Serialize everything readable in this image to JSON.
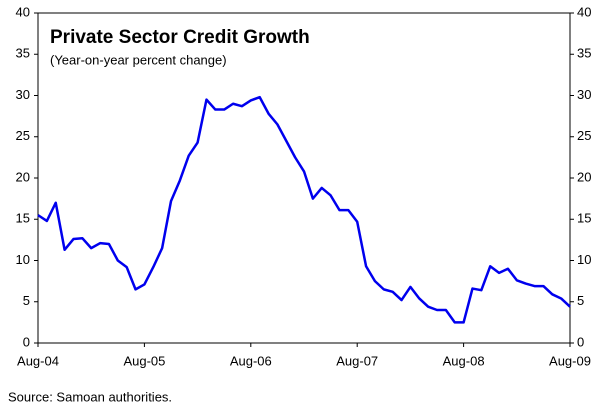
{
  "chart_data": {
    "type": "line",
    "title": "Private Sector Credit Growth",
    "subtitle": "(Year-on-year percent change)",
    "source": "Source: Samoan authorities.",
    "categories": [
      "Aug-04",
      null,
      null,
      null,
      null,
      null,
      null,
      null,
      null,
      null,
      null,
      null,
      "Aug-05",
      null,
      null,
      null,
      null,
      null,
      null,
      null,
      null,
      null,
      null,
      null,
      "Aug-06",
      null,
      null,
      null,
      null,
      null,
      null,
      null,
      null,
      null,
      null,
      null,
      "Aug-07",
      null,
      null,
      null,
      null,
      null,
      null,
      null,
      null,
      null,
      null,
      null,
      "Aug-08",
      null,
      null,
      null,
      null,
      null,
      null,
      null,
      null,
      null,
      null,
      null,
      "Aug-09"
    ],
    "values": [
      15.5,
      14.8,
      17,
      11.3,
      12.6,
      12.7,
      11.5,
      12.1,
      12,
      10,
      9.2,
      6.5,
      7.1,
      9.2,
      11.5,
      17.2,
      19.7,
      22.7,
      24.3,
      29.5,
      28.3,
      28.3,
      29,
      28.7,
      29.4,
      29.8,
      27.8,
      26.5,
      24.5,
      22.5,
      20.8,
      17.5,
      18.8,
      17.9,
      16.1,
      16.1,
      14.7,
      9.3,
      7.5,
      6.5,
      6.2,
      5.2,
      6.8,
      5.4,
      4.4,
      4,
      4,
      2.5,
      2.5,
      6.6,
      6.4,
      9.3,
      8.5,
      9,
      7.6,
      7.2,
      6.9,
      6.9,
      5.9,
      5.4,
      4.4
    ],
    "color": "#0000ee",
    "ylim": [
      0,
      40
    ],
    "yticks": [
      0,
      5,
      10,
      15,
      20,
      25,
      30,
      35,
      40
    ],
    "y2lim": [
      0,
      40
    ],
    "y2ticks": [
      0,
      5,
      10,
      15,
      20,
      25,
      30,
      35,
      40
    ]
  }
}
